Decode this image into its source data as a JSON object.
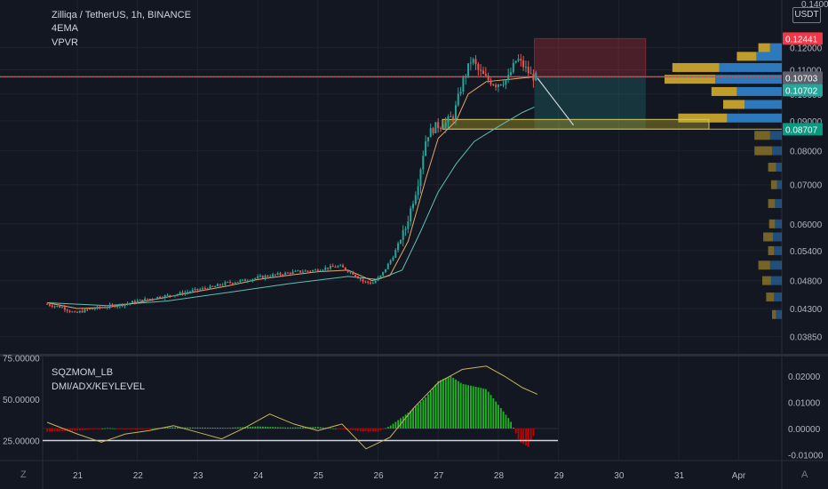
{
  "legend": {
    "symbol": "Zilliqa / TetherUS, 1h, BINANCE",
    "indicator1": "4EMA",
    "indicator2": "VPVR",
    "sub_indicator1": "SQZMOM_LB",
    "sub_indicator2": "DMI/ADX/KEYLEVEL"
  },
  "currency_button": "USDT",
  "corner_left": "Z",
  "corner_right": "A",
  "price_axis": {
    "ticks": [
      "0.12000",
      "0.11000",
      "0.10000",
      "0.09000",
      "0.08000",
      "0.07000",
      "0.06000",
      "0.05400",
      "0.04800",
      "0.04300",
      "0.03850"
    ],
    "top_cut": "0.14000",
    "labels": [
      {
        "text": "0.12441",
        "color": "#f23645"
      },
      {
        "text": "0.10703",
        "color": "#5d606b"
      },
      {
        "text": "0.10702",
        "color": "#26a69a"
      },
      {
        "text": "0.08707",
        "color": "#089981"
      }
    ]
  },
  "sub_axis": {
    "right_ticks": [
      "0.02000",
      "0.01000",
      "0.00000",
      "-0.01000"
    ],
    "left_ticks": [
      "75.00000",
      "50.00000",
      "25.00000"
    ]
  },
  "time_axis": [
    "21",
    "22",
    "23",
    "24",
    "25",
    "26",
    "27",
    "28",
    "29",
    "30",
    "31",
    "Apr"
  ],
  "colors": {
    "up": "#26a69a",
    "down": "#ef5350",
    "ema_fast": "#e8a66b",
    "ema_slow": "#5fbfb5",
    "resistance": "#f23645",
    "vp_up": "#2d7ec6",
    "vp_down": "#c9a32c",
    "momentum_up": "#21c91f",
    "momentum_down": "#d50000"
  },
  "chart_data": {
    "type": "candlestick",
    "price_range": [
      0.037,
      0.14
    ],
    "key_levels": {
      "resistance": 0.10703,
      "last": 0.10702,
      "support": 0.08707,
      "stop": 0.12441
    },
    "price_path": [
      [
        20.5,
        0.0438
      ],
      [
        20.8,
        0.0432
      ],
      [
        21.0,
        0.0422
      ],
      [
        21.2,
        0.0428
      ],
      [
        21.5,
        0.0433
      ],
      [
        21.8,
        0.0437
      ],
      [
        22.1,
        0.0444
      ],
      [
        22.4,
        0.045
      ],
      [
        22.7,
        0.0455
      ],
      [
        23.0,
        0.0462
      ],
      [
        23.3,
        0.0468
      ],
      [
        23.5,
        0.0475
      ],
      [
        23.8,
        0.048
      ],
      [
        24.1,
        0.0487
      ],
      [
        24.4,
        0.0492
      ],
      [
        24.7,
        0.0497
      ],
      [
        25.0,
        0.05
      ],
      [
        25.2,
        0.0505
      ],
      [
        25.4,
        0.0508
      ],
      [
        25.6,
        0.0496
      ],
      [
        25.8,
        0.0478
      ],
      [
        25.95,
        0.0475
      ],
      [
        26.1,
        0.049
      ],
      [
        26.3,
        0.053
      ],
      [
        26.5,
        0.059
      ],
      [
        26.7,
        0.07
      ],
      [
        26.85,
        0.085
      ],
      [
        27.0,
        0.088
      ],
      [
        27.15,
        0.089
      ],
      [
        27.3,
        0.092
      ],
      [
        27.45,
        0.105
      ],
      [
        27.6,
        0.115
      ],
      [
        27.7,
        0.11
      ],
      [
        27.85,
        0.106
      ],
      [
        28.0,
        0.104
      ],
      [
        28.2,
        0.106
      ],
      [
        28.35,
        0.115
      ],
      [
        28.45,
        0.112
      ],
      [
        28.6,
        0.107
      ],
      [
        28.65,
        0.107
      ]
    ],
    "ema_fast": [
      [
        20.5,
        0.044
      ],
      [
        21.0,
        0.043
      ],
      [
        21.5,
        0.0432
      ],
      [
        22.0,
        0.044
      ],
      [
        22.5,
        0.045
      ],
      [
        23.0,
        0.046
      ],
      [
        23.5,
        0.047
      ],
      [
        24.0,
        0.0482
      ],
      [
        24.5,
        0.049
      ],
      [
        25.0,
        0.0497
      ],
      [
        25.5,
        0.05
      ],
      [
        25.9,
        0.048
      ],
      [
        26.2,
        0.049
      ],
      [
        26.5,
        0.056
      ],
      [
        26.8,
        0.072
      ],
      [
        27.0,
        0.084
      ],
      [
        27.3,
        0.09
      ],
      [
        27.5,
        0.1
      ],
      [
        27.8,
        0.105
      ],
      [
        28.2,
        0.106
      ],
      [
        28.6,
        0.107
      ]
    ],
    "ema_slow": [
      [
        20.5,
        0.044
      ],
      [
        21.5,
        0.0435
      ],
      [
        22.5,
        0.0443
      ],
      [
        23.5,
        0.0458
      ],
      [
        24.5,
        0.0474
      ],
      [
        25.5,
        0.0488
      ],
      [
        26.0,
        0.0482
      ],
      [
        26.4,
        0.05
      ],
      [
        26.7,
        0.058
      ],
      [
        27.0,
        0.068
      ],
      [
        27.3,
        0.076
      ],
      [
        27.6,
        0.083
      ],
      [
        28.0,
        0.088
      ],
      [
        28.4,
        0.093
      ],
      [
        28.6,
        0.095
      ]
    ],
    "volume_profile": [
      {
        "price": 0.12,
        "up": 0.6,
        "down": 0.6
      },
      {
        "price": 0.116,
        "up": 1.3,
        "down": 1.0
      },
      {
        "price": 0.111,
        "up": 3.2,
        "down": 2.4
      },
      {
        "price": 0.106,
        "up": 3.4,
        "down": 2.6
      },
      {
        "price": 0.101,
        "up": 2.3,
        "down": 1.3
      },
      {
        "price": 0.096,
        "up": 1.9,
        "down": 1.1
      },
      {
        "price": 0.091,
        "up": 2.8,
        "down": 2.5
      },
      {
        "price": 0.085,
        "up": 0.6,
        "down": 0.8
      },
      {
        "price": 0.08,
        "up": 0.5,
        "down": 0.9
      },
      {
        "price": 0.075,
        "up": 0.3,
        "down": 0.4
      },
      {
        "price": 0.07,
        "up": 0.25,
        "down": 0.3
      },
      {
        "price": 0.065,
        "up": 0.35,
        "down": 0.35
      },
      {
        "price": 0.06,
        "up": 0.35,
        "down": 0.3
      },
      {
        "price": 0.057,
        "up": 0.45,
        "down": 0.5
      },
      {
        "price": 0.054,
        "up": 0.4,
        "down": 0.3
      },
      {
        "price": 0.051,
        "up": 0.6,
        "down": 0.6
      },
      {
        "price": 0.048,
        "up": 0.55,
        "down": 0.45
      },
      {
        "price": 0.045,
        "up": 0.4,
        "down": 0.4
      },
      {
        "price": 0.042,
        "up": 0.3,
        "down": 0.2
      }
    ],
    "momentum": [
      [
        20.5,
        -0.0012
      ],
      [
        21.0,
        -0.0008
      ],
      [
        21.5,
        0.0002
      ],
      [
        22.0,
        -0.0004
      ],
      [
        22.5,
        0.0005
      ],
      [
        23.0,
        0.0004
      ],
      [
        23.5,
        0.0003
      ],
      [
        24.0,
        0.0008
      ],
      [
        24.5,
        0.0004
      ],
      [
        25.0,
        0.0006
      ],
      [
        25.4,
        -0.0002
      ],
      [
        25.7,
        -0.001
      ],
      [
        26.0,
        -0.0012
      ],
      [
        26.2,
        0.001
      ],
      [
        26.5,
        0.006
      ],
      [
        26.8,
        0.012
      ],
      [
        27.0,
        0.018
      ],
      [
        27.2,
        0.02
      ],
      [
        27.4,
        0.017
      ],
      [
        27.6,
        0.016
      ],
      [
        27.8,
        0.015
      ],
      [
        28.0,
        0.009
      ],
      [
        28.2,
        0.003
      ],
      [
        28.35,
        -0.005
      ],
      [
        28.5,
        -0.007
      ],
      [
        28.6,
        -0.002
      ]
    ],
    "adx": [
      [
        20.5,
        36
      ],
      [
        21.0,
        29
      ],
      [
        21.4,
        24
      ],
      [
        21.8,
        29
      ],
      [
        22.2,
        31
      ],
      [
        22.6,
        34
      ],
      [
        23.0,
        30
      ],
      [
        23.4,
        26
      ],
      [
        23.8,
        33
      ],
      [
        24.2,
        41
      ],
      [
        24.6,
        35
      ],
      [
        25.0,
        31
      ],
      [
        25.4,
        35
      ],
      [
        25.8,
        20
      ],
      [
        26.2,
        27
      ],
      [
        26.6,
        45
      ],
      [
        27.0,
        60
      ],
      [
        27.4,
        68
      ],
      [
        27.8,
        70
      ],
      [
        28.1,
        64
      ],
      [
        28.4,
        57
      ],
      [
        28.65,
        53
      ]
    ],
    "adx_range": [
      14,
      84
    ],
    "key_level": 25
  }
}
